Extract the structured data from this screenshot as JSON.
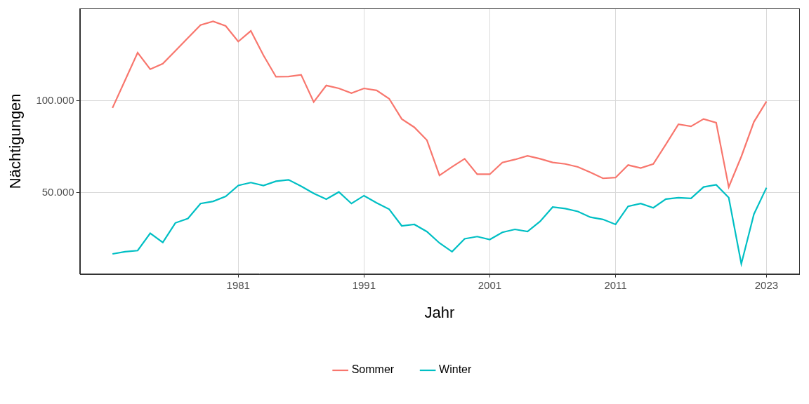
{
  "chart_data": {
    "type": "line",
    "x_label": "Jahr",
    "y_label": "Nächtigungen",
    "x": [
      1971,
      1972,
      1973,
      1974,
      1975,
      1976,
      1977,
      1978,
      1979,
      1980,
      1981,
      1982,
      1983,
      1984,
      1985,
      1986,
      1987,
      1988,
      1989,
      1990,
      1991,
      1992,
      1993,
      1994,
      1995,
      1996,
      1997,
      1998,
      1999,
      2000,
      2001,
      2002,
      2003,
      2004,
      2005,
      2006,
      2007,
      2008,
      2009,
      2010,
      2011,
      2012,
      2013,
      2014,
      2015,
      2016,
      2017,
      2018,
      2019,
      2020,
      2021,
      2022,
      2023
    ],
    "series": [
      {
        "name": "Sommer",
        "color": "#F8766D",
        "values": [
          96000,
          111000,
          126000,
          117000,
          120000,
          127000,
          134000,
          141000,
          143000,
          140500,
          132000,
          137800,
          124600,
          112900,
          113000,
          114000,
          99200,
          108200,
          106600,
          104000,
          106600,
          105500,
          101000,
          90000,
          85500,
          78500,
          59400,
          64000,
          68400,
          60000,
          60000,
          66400,
          68000,
          70000,
          68400,
          66400,
          65600,
          64000,
          61000,
          57800,
          58200,
          65000,
          63400,
          65600,
          76200,
          87100,
          86000,
          90000,
          88000,
          53100,
          69600,
          88400,
          99500
        ]
      },
      {
        "name": "Winter",
        "color": "#00BFC4",
        "values": [
          16800,
          18000,
          18600,
          28000,
          23000,
          33600,
          36000,
          44100,
          45300,
          48000,
          53900,
          55500,
          53900,
          56200,
          57000,
          53500,
          49600,
          46500,
          50400,
          44100,
          48400,
          44500,
          41000,
          32000,
          32800,
          28900,
          22700,
          18000,
          25000,
          26200,
          24600,
          28500,
          30100,
          28900,
          34400,
          42200,
          41400,
          39800,
          36700,
          35500,
          32800,
          42600,
          44100,
          41800,
          46500,
          47300,
          46900,
          53100,
          54300,
          47300,
          11400,
          38300,
          52700
        ]
      }
    ],
    "xlim": [
      1968.4,
      2025.6
    ],
    "xticks": [
      1981,
      1991,
      2001,
      2011,
      2023
    ],
    "ylim": [
      5900,
      150000
    ],
    "yticks": [
      {
        "value": 50000,
        "label": "50.000"
      },
      {
        "value": 100000,
        "label": "100.000"
      }
    ],
    "grid": true,
    "legend": "bottom"
  }
}
